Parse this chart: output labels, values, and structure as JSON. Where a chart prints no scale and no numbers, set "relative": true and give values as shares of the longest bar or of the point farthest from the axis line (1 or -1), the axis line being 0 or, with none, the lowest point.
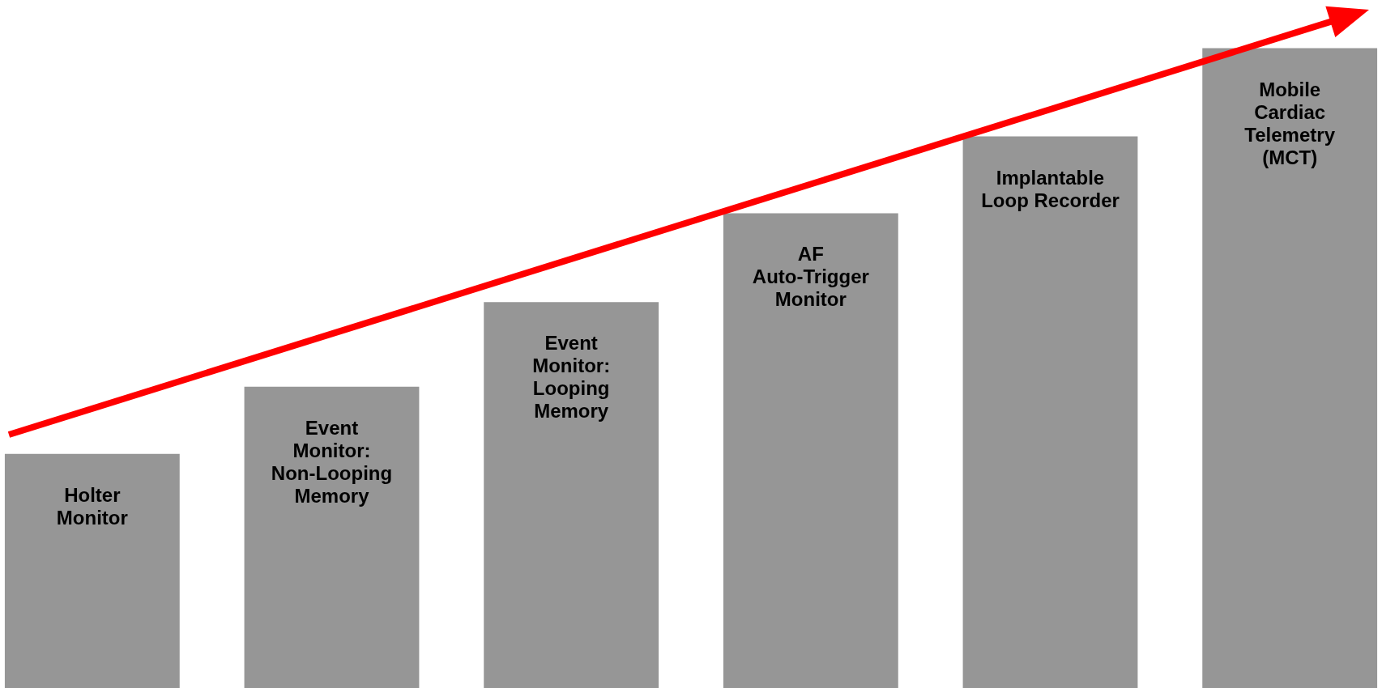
{
  "chart_data": {
    "type": "bar",
    "relative": true,
    "color": "#969696",
    "categories": [
      "Holter Monitor",
      "Event Monitor: Non-Looping Memory",
      "Event Monitor: Looping Memory",
      "AF Auto-Trigger Monitor",
      "Implantable Loop Recorder",
      "Mobile Cardiac Telemetry (MCT)"
    ],
    "values": [
      0.366,
      0.471,
      0.603,
      0.742,
      0.862,
      1
    ]
  }
}
